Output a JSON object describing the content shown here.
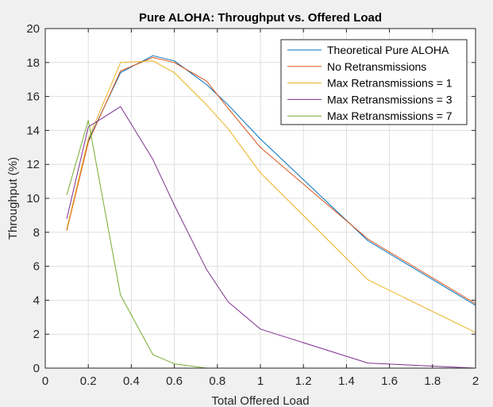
{
  "chart_data": {
    "type": "line",
    "title": "Pure ALOHA: Throughput vs. Offered Load",
    "xlabel": "Total Offered Load",
    "ylabel": "Throughput (%)",
    "xlim": [
      0,
      2
    ],
    "ylim": [
      0,
      20
    ],
    "xticks": [
      0,
      0.2,
      0.4,
      0.6,
      0.8,
      1,
      1.2,
      1.4,
      1.6,
      1.8,
      2
    ],
    "xtick_labels": [
      "0",
      "0.2",
      "0.4",
      "0.6",
      "0.8",
      "1",
      "1.2",
      "1.4",
      "1.6",
      "1.8",
      "2"
    ],
    "yticks": [
      0,
      2,
      4,
      6,
      8,
      10,
      12,
      14,
      16,
      18,
      20
    ],
    "ytick_labels": [
      "0",
      "2",
      "4",
      "6",
      "8",
      "10",
      "12",
      "14",
      "16",
      "18",
      "20"
    ],
    "grid": true,
    "legend_position": "top-right",
    "x": [
      0.1,
      0.2,
      0.35,
      0.5,
      0.6,
      0.75,
      0.85,
      1.0,
      1.5,
      2.0
    ],
    "series": [
      {
        "name": "Theoretical Pure ALOHA",
        "color": "#0072BD",
        "values": [
          8.2,
          13.4,
          17.4,
          18.4,
          18.1,
          16.7,
          15.5,
          13.5,
          7.5,
          3.7
        ]
      },
      {
        "name": "No Retransmissions",
        "color": "#D95319",
        "values": [
          8.1,
          13.3,
          17.5,
          18.3,
          18.0,
          16.9,
          15.3,
          13.0,
          7.6,
          3.8
        ]
      },
      {
        "name": "Max Retransmissions = 1",
        "color": "#EDB120",
        "values": [
          8.2,
          13.5,
          18.0,
          18.1,
          17.4,
          15.5,
          14.1,
          11.5,
          5.2,
          2.1
        ]
      },
      {
        "name": "Max Retransmissions = 3",
        "color": "#7E2F8E",
        "values": [
          8.8,
          14.2,
          15.4,
          12.3,
          9.6,
          5.8,
          3.9,
          2.3,
          0.3,
          0.0
        ]
      },
      {
        "name": "Max Retransmissions = 7",
        "color": "#77AC30",
        "values": [
          10.2,
          14.6,
          4.3,
          0.8,
          0.25,
          0.0,
          0.0,
          0.0,
          0.0,
          0.0
        ]
      }
    ]
  }
}
